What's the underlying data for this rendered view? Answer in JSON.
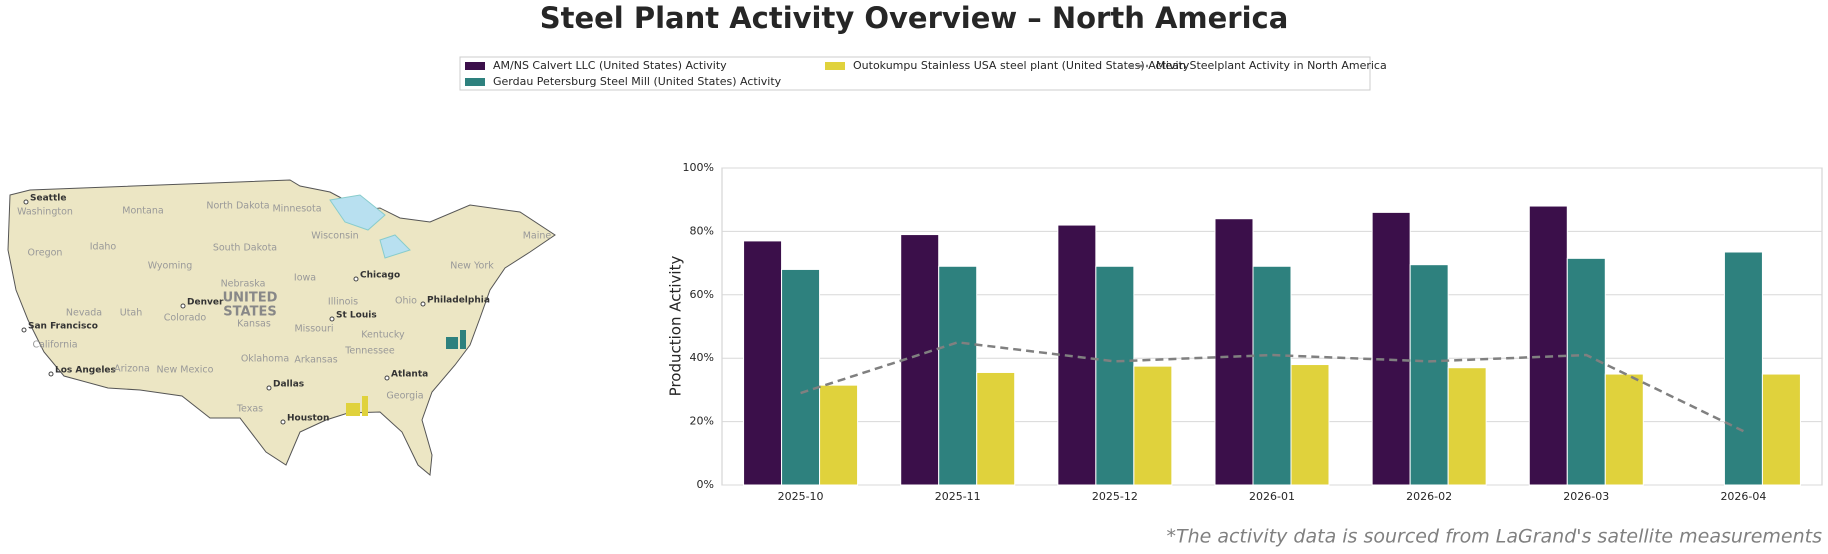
{
  "chart_data": {
    "type": "bar",
    "title": "Steel Plant Activity Overview – North America",
    "ylabel": "Production Activity",
    "categories": [
      "2025-10",
      "2025-11",
      "2025-12",
      "2026-01",
      "2026-02",
      "2026-03",
      "2026-04"
    ],
    "series": [
      {
        "name": "AM/NS Calvert LLC (United States) Activity",
        "color": "#3b0f4a",
        "values": [
          77,
          79,
          82,
          84,
          86,
          88,
          null
        ]
      },
      {
        "name": "Gerdau Petersburg Steel Mill (United States) Activity",
        "color": "#2e817e",
        "values": [
          68,
          69,
          69,
          69,
          69.5,
          71.5,
          73.5
        ]
      },
      {
        "name": "Outokumpu Stainless USA steel plant (United States) Activity",
        "color": "#e0d23c",
        "values": [
          31.5,
          35.5,
          37.5,
          38,
          37,
          35,
          35
        ]
      },
      {
        "name": "Mean Steelplant Activity in North America",
        "color": "#808080",
        "kind": "line",
        "dashed": true,
        "values": [
          29,
          45,
          39,
          41,
          39,
          41,
          17
        ]
      }
    ],
    "ylim": [
      0,
      100
    ],
    "yticks": [
      {
        "value": 0,
        "label": "0%"
      },
      {
        "value": 20,
        "label": "20%"
      },
      {
        "value": 40,
        "label": "40%"
      },
      {
        "value": 60,
        "label": "60%"
      },
      {
        "value": 80,
        "label": "80%"
      },
      {
        "value": 100,
        "label": "100%"
      }
    ],
    "grid": true,
    "note": "*The activity data is sourced from LaGrand's satellite measurements"
  },
  "map": {
    "cities": [
      "Seattle",
      "San Francisco",
      "Los Angeles",
      "Denver",
      "Dallas",
      "Houston",
      "Chicago",
      "St Louis",
      "Atlanta",
      "Philadelphia"
    ],
    "country": [
      "UNITED",
      "STATES"
    ],
    "states": [
      "Washington",
      "Montana",
      "North Dakota",
      "Minnesota",
      "Oregon",
      "Idaho",
      "Wyoming",
      "South Dakota",
      "Wisconsin",
      "Nebraska",
      "Iowa",
      "Nevada",
      "Utah",
      "Colorado",
      "Kansas",
      "Missouri",
      "Illinois",
      "Ohio",
      "Kentucky",
      "California",
      "Arizona",
      "New Mexico",
      "Oklahoma",
      "Arkansas",
      "Tennessee",
      "Texas",
      "Georgia",
      "New York",
      "Maine"
    ]
  }
}
